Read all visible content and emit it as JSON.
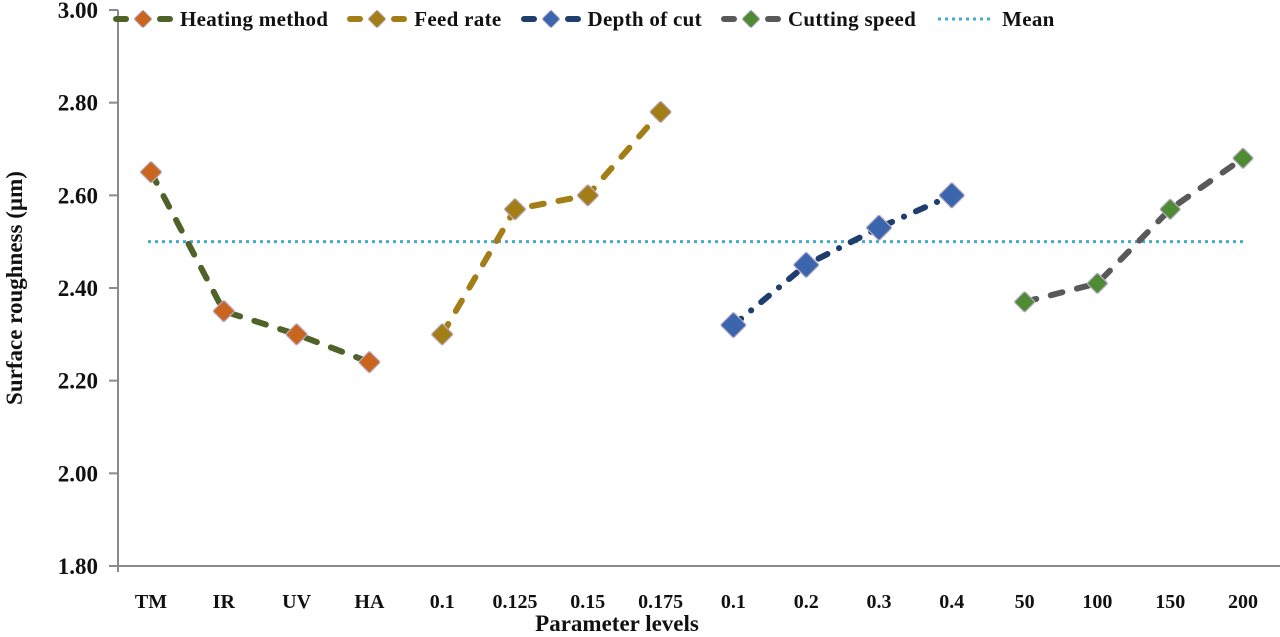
{
  "chart_data": {
    "type": "line",
    "title": "",
    "xlabel": "Parameter levels",
    "ylabel": "Surface roughness (µm)",
    "ylim": [
      1.8,
      3.0
    ],
    "ytick_values": [
      1.8,
      2.0,
      2.2,
      2.4,
      2.6,
      2.8,
      3.0
    ],
    "ytick_labels": [
      "1.80",
      "2.00",
      "2.20",
      "2.40",
      "2.60",
      "2.80",
      "3.00"
    ],
    "categories": [
      "TM",
      "IR",
      "UV",
      "HA",
      "0.1",
      "0.125",
      "0.15",
      "0.175",
      "0.1",
      "0.2",
      "0.3",
      "0.4",
      "50",
      "100",
      "150",
      "200"
    ],
    "grid": false,
    "legend_position": "top",
    "series": [
      {
        "name": "Heating method",
        "categories": [
          "TM",
          "IR",
          "UV",
          "HA"
        ],
        "start_index": 0,
        "values": [
          2.65,
          2.35,
          2.3,
          2.24
        ],
        "line_color": "#4F6228",
        "marker_color": "#C9651F",
        "line_style": "dashed",
        "marker": "diamond",
        "marker_size": 11
      },
      {
        "name": "Feed rate",
        "categories": [
          "0.1",
          "0.125",
          "0.15",
          "0.175"
        ],
        "start_index": 4,
        "values": [
          2.3,
          2.57,
          2.6,
          2.78
        ],
        "line_color": "#A37D15",
        "marker_color": "#A37D15",
        "line_style": "dashed",
        "marker": "diamond",
        "marker_size": 11
      },
      {
        "name": "Depth of cut",
        "categories": [
          "0.1",
          "0.2",
          "0.3",
          "0.4"
        ],
        "start_index": 8,
        "values": [
          2.32,
          2.45,
          2.53,
          2.6
        ],
        "line_color": "#1F3D6D",
        "marker_color": "#3B66AE",
        "line_style": "dash-dot",
        "marker": "diamond",
        "marker_size": 13
      },
      {
        "name": "Cutting speed",
        "categories": [
          "50",
          "100",
          "150",
          "200"
        ],
        "start_index": 12,
        "values": [
          2.37,
          2.41,
          2.57,
          2.68
        ],
        "line_color": "#595959",
        "marker_color": "#4E8B33",
        "line_style": "dashed",
        "marker": "diamond",
        "marker_size": 10.5
      }
    ],
    "mean_line": {
      "label": "Mean",
      "value": 2.5,
      "color": "#45ABCB",
      "line_style": "dotted"
    },
    "axis_color": "#8A8A8A",
    "text_color": "#111111"
  }
}
